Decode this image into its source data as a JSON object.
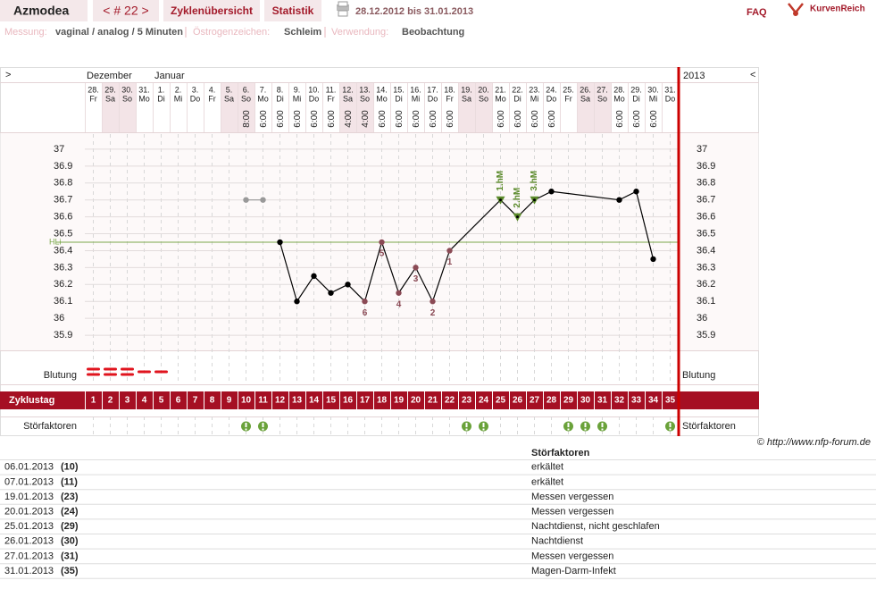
{
  "header": {
    "title": "Azmodea",
    "cycle_nav": "< # 22 >",
    "tabs": [
      "Zyklenübersicht",
      "Statistik"
    ],
    "period": "28.12.2012 bis 31.01.2013",
    "faq": "FAQ",
    "brand": "KurvenReich"
  },
  "settings_line": [
    {
      "label": "Messung:",
      "value": "vaginal / analog / 5 Minuten"
    },
    {
      "label": "Östrogenzeichen:",
      "value": "Schleim"
    },
    {
      "label": "Verwendung:",
      "value": "Beobachtung"
    }
  ],
  "chart_data": {
    "type": "line",
    "nav_left": ">",
    "nav_right": "<",
    "year": "2013",
    "month_labels": [
      "Dezember",
      null,
      null,
      null,
      "Januar",
      null,
      null,
      null,
      null,
      null,
      null,
      null,
      null,
      null,
      null,
      null,
      null,
      null,
      null,
      null,
      null,
      null,
      null,
      null,
      null,
      null,
      null,
      null,
      null,
      null,
      null,
      null,
      null,
      null,
      null
    ],
    "categories": [
      "28.",
      "29.",
      "30.",
      "31.",
      "1.",
      "2.",
      "3.",
      "4.",
      "5.",
      "6.",
      "7.",
      "8.",
      "9.",
      "10.",
      "11.",
      "12.",
      "13.",
      "14.",
      "15.",
      "16.",
      "17.",
      "18.",
      "19.",
      "20.",
      "21.",
      "22.",
      "23.",
      "24.",
      "25.",
      "26.",
      "27.",
      "28.",
      "29.",
      "30.",
      "31."
    ],
    "weekdays": [
      "Fr",
      "Sa",
      "So",
      "Mo",
      "Di",
      "Mi",
      "Do",
      "Fr",
      "Sa",
      "So",
      "Mo",
      "Di",
      "Mi",
      "Do",
      "Fr",
      "Sa",
      "So",
      "Mo",
      "Di",
      "Mi",
      "Do",
      "Fr",
      "Sa",
      "So",
      "Mo",
      "Di",
      "Mi",
      "Do",
      "Fr",
      "Sa",
      "So",
      "Mo",
      "Di",
      "Mi",
      "Do"
    ],
    "weekend": [
      false,
      true,
      true,
      false,
      false,
      false,
      false,
      false,
      true,
      true,
      false,
      false,
      false,
      false,
      false,
      true,
      true,
      false,
      false,
      false,
      false,
      false,
      true,
      true,
      false,
      false,
      false,
      false,
      false,
      true,
      true,
      false,
      false,
      false,
      false
    ],
    "times": [
      null,
      null,
      null,
      null,
      null,
      null,
      null,
      null,
      null,
      "8:00",
      "6:00",
      "6:00",
      "6:00",
      "6:00",
      "6:00",
      "4:00",
      "4:00",
      "6:00",
      "6:00",
      "6:00",
      "6:00",
      "6:00",
      null,
      null,
      "6:00",
      "6:00",
      "6:00",
      "6:00",
      null,
      null,
      null,
      "6:00",
      "6:00",
      "6:00",
      null
    ],
    "series": [
      {
        "color": "#999999",
        "values": [
          null,
          null,
          null,
          null,
          null,
          null,
          null,
          null,
          null,
          36.7,
          36.7,
          null,
          null,
          null,
          null,
          null,
          null,
          null,
          null,
          null,
          null,
          null,
          null,
          null,
          null,
          null,
          null,
          null,
          null,
          null,
          null,
          null,
          null,
          null,
          null
        ]
      },
      {
        "color": "#000000",
        "values": [
          null,
          null,
          null,
          null,
          null,
          null,
          null,
          null,
          null,
          null,
          null,
          36.45,
          36.1,
          36.25,
          36.15,
          36.2,
          36.1,
          36.45,
          36.15,
          36.3,
          36.1,
          36.4,
          null,
          null,
          36.7,
          36.6,
          36.7,
          36.75,
          null,
          null,
          null,
          36.7,
          36.75,
          36.35,
          null
        ]
      }
    ],
    "connect_gaps": true,
    "point_labels": [
      null,
      null,
      null,
      null,
      null,
      null,
      null,
      null,
      null,
      null,
      null,
      null,
      null,
      null,
      null,
      null,
      "6",
      "5",
      "4",
      "3",
      "2",
      "1",
      null,
      null,
      null,
      null,
      null,
      null,
      null,
      null,
      null,
      null,
      null,
      null,
      null
    ],
    "label_color": "#8b4a55",
    "peak_labels": [
      null,
      null,
      null,
      null,
      null,
      null,
      null,
      null,
      null,
      null,
      null,
      null,
      null,
      null,
      null,
      null,
      null,
      null,
      null,
      null,
      null,
      null,
      null,
      null,
      "1.hM",
      "2.hM",
      "3.hM",
      null,
      null,
      null,
      null,
      null,
      null,
      null,
      null
    ],
    "peak_color": "#5a8a2a",
    "coverline": {
      "label": "HLi",
      "value": 36.45,
      "color": "#7aa84a"
    },
    "ylim": [
      35.8,
      37.1
    ],
    "yticks": [
      35.9,
      36,
      36.1,
      36.2,
      36.3,
      36.4,
      36.5,
      36.6,
      36.7,
      36.8,
      36.9,
      37
    ],
    "grid": true,
    "bleeding_label": "Blutung",
    "bleeding": [
      2,
      2,
      2,
      1,
      1,
      null,
      null,
      null,
      null,
      null,
      null,
      null,
      null,
      null,
      null,
      null,
      null,
      null,
      null,
      null,
      null,
      null,
      null,
      null,
      null,
      null,
      null,
      null,
      null,
      null,
      null,
      null,
      null,
      null,
      null
    ],
    "bleeding_color": "#e0141e",
    "cycle_day_label": "Zyklustag",
    "cycle_days": [
      1,
      2,
      3,
      4,
      5,
      6,
      7,
      8,
      9,
      10,
      11,
      12,
      13,
      14,
      15,
      16,
      17,
      18,
      19,
      20,
      21,
      22,
      23,
      24,
      25,
      26,
      27,
      28,
      29,
      30,
      31,
      32,
      33,
      34,
      35
    ],
    "disturbance_label": "Störfaktoren",
    "disturbances": [
      false,
      false,
      false,
      false,
      false,
      false,
      false,
      false,
      false,
      true,
      true,
      false,
      false,
      false,
      false,
      false,
      false,
      false,
      false,
      false,
      false,
      false,
      true,
      true,
      false,
      false,
      false,
      false,
      true,
      true,
      true,
      false,
      false,
      false,
      true
    ],
    "disturbance_color": "#6aa23a"
  },
  "copyright": "© http://www.nfp-forum.de",
  "table": {
    "header": "Störfaktoren",
    "rows": [
      [
        "06.01.2013",
        "(10)",
        "erkältet"
      ],
      [
        "07.01.2013",
        "(11)",
        "erkältet"
      ],
      [
        "19.01.2013",
        "(23)",
        "Messen vergessen"
      ],
      [
        "20.01.2013",
        "(24)",
        "Messen vergessen"
      ],
      [
        "25.01.2013",
        "(29)",
        "Nachtdienst, nicht geschlafen"
      ],
      [
        "26.01.2013",
        "(30)",
        "Nachtdienst"
      ],
      [
        "27.01.2013",
        "(31)",
        "Messen vergessen"
      ],
      [
        "31.01.2013",
        "(35)",
        "Magen-Darm-Infekt"
      ]
    ]
  }
}
